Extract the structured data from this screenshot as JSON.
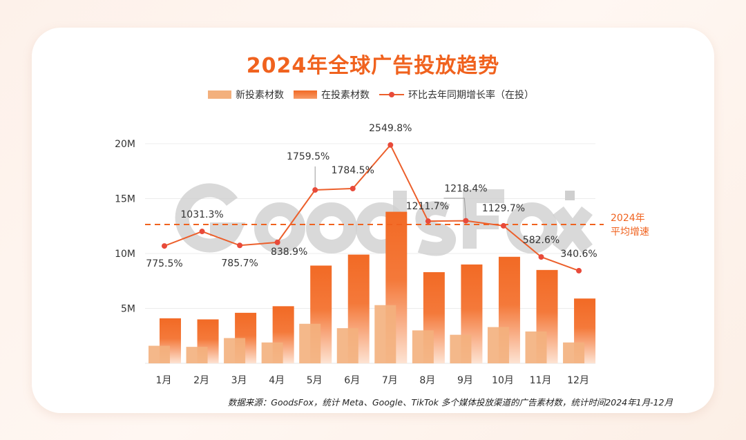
{
  "title": "2024年全球广告投放趋势",
  "legend": {
    "new": "新投素材数",
    "active": "在投素材数",
    "rate": "环比去年同期增长率（在投）"
  },
  "watermark": "GoodsFox",
  "avg_line_label": [
    "2024年",
    "平均增速"
  ],
  "footnote": "数据来源：GoodsFox，统计 Meta、Google、TikTok 多个媒体投放渠道的广告素材数，统计时间2024年1月-12月",
  "colors": {
    "title": "#f0621e",
    "new_bar": "#f3b07d",
    "active_bar": "#f26a25",
    "line": "#ec5f2b",
    "point": "#e84a3a",
    "avg_line": "#f0621e"
  },
  "chart_data": {
    "type": "bar+line",
    "categories": [
      "1月",
      "2月",
      "3月",
      "4月",
      "5月",
      "6月",
      "7月",
      "8月",
      "9月",
      "10月",
      "11月",
      "12月"
    ],
    "yticks": [
      "5M",
      "10M",
      "15M",
      "20M"
    ],
    "ylim": [
      0,
      20
    ],
    "yunit": "M",
    "grid": true,
    "legend_position": "top",
    "series": [
      {
        "name": "新投素材数",
        "type": "bar",
        "values": [
          1.6,
          1.5,
          2.3,
          1.9,
          3.6,
          3.2,
          5.3,
          3.0,
          2.6,
          3.3,
          2.9,
          1.9
        ]
      },
      {
        "name": "在投素材数",
        "type": "bar",
        "values": [
          4.1,
          4.0,
          4.6,
          5.2,
          8.9,
          9.9,
          13.8,
          8.3,
          9.0,
          9.7,
          8.5,
          5.9
        ]
      },
      {
        "name": "环比去年同期增长率（在投）",
        "type": "line",
        "values": [
          775.5,
          1031.3,
          785.7,
          838.9,
          1759.5,
          1784.5,
          2549.8,
          1211.7,
          1218.4,
          1129.7,
          582.6,
          340.6
        ],
        "labels": [
          "775.5%",
          "1031.3%",
          "785.7%",
          "838.9%",
          "1759.5%",
          "1784.5%",
          "2549.8%",
          "1211.7%",
          "1218.4%",
          "1129.7%",
          "582.6%",
          "340.6%"
        ]
      }
    ]
  }
}
